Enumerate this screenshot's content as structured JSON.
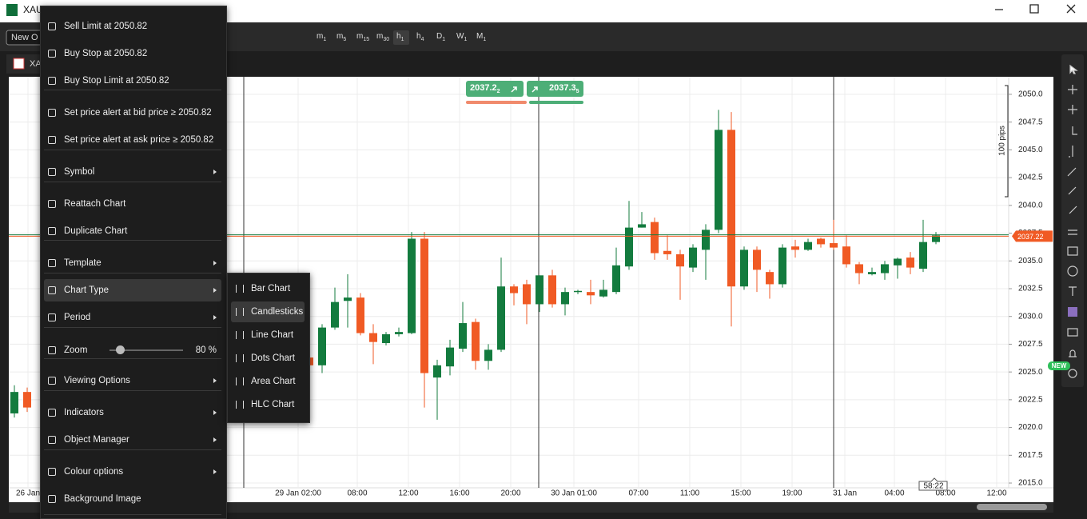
{
  "window": {
    "title": "XAU"
  },
  "toolbar": {
    "new_order": "New O",
    "periods": [
      {
        "main": "m",
        "sub": "1"
      },
      {
        "main": "m",
        "sub": "5"
      },
      {
        "main": "m",
        "sub": "15"
      },
      {
        "main": "m",
        "sub": "30"
      },
      {
        "main": "h",
        "sub": "1"
      },
      {
        "main": "h",
        "sub": "4"
      },
      {
        "main": "D",
        "sub": "1"
      },
      {
        "main": "W",
        "sub": "1"
      },
      {
        "main": "M",
        "sub": "1"
      }
    ],
    "active_period": 4
  },
  "tab": {
    "label": "XA"
  },
  "badge": "NEW",
  "chart_data": {
    "type": "candlestick",
    "ylim": [
      2014.57,
      2051.58
    ],
    "yticks": [
      {
        "value": 2050,
        "label": "2050.0"
      },
      {
        "value": 2047.5,
        "label": "2047.5"
      },
      {
        "value": 2045,
        "label": "2045.0"
      },
      {
        "value": 2042.5,
        "label": "2042.5"
      },
      {
        "value": 2040,
        "label": "2040.0"
      },
      {
        "value": 2037.5,
        "label": "2037.5"
      },
      {
        "value": 2035,
        "label": "2035.0"
      },
      {
        "value": 2032.5,
        "label": "2032.5"
      },
      {
        "value": 2030,
        "label": "2030.0"
      },
      {
        "value": 2027.5,
        "label": "2027.5"
      },
      {
        "value": 2025,
        "label": "2025.0"
      },
      {
        "value": 2022.5,
        "label": "2022.5"
      },
      {
        "value": 2020,
        "label": "2020.0"
      },
      {
        "value": 2017.5,
        "label": "2017.5"
      },
      {
        "value": 2015,
        "label": "2015.0"
      }
    ],
    "xticks": [
      "26 Jan",
      "29 Jan 02:00",
      "08:00",
      "12:00",
      "16:00",
      "20:00",
      "30 Jan 01:00",
      "07:00",
      "11:00",
      "15:00",
      "19:00",
      "31 Jan",
      "04:00",
      "08:00",
      "12:00"
    ],
    "grid": true,
    "up_color": "#137b3e",
    "down_color": "#f05a24",
    "candles": {
      "open": [
        2021.27,
        2023.2,
        2026.3,
        2025.6,
        2029.0,
        2031.4,
        2031.7,
        2028.5,
        2027.6,
        2028.4,
        2028.5,
        2037.0,
        2024.5,
        2025.5,
        2027.1,
        2029.5,
        2026.0,
        2027.0,
        2032.7,
        2032.9,
        2031.1,
        2033.7,
        2031.1,
        2032.2,
        2032.2,
        2031.8,
        2032.2,
        2034.5,
        2038.0,
        2038.5,
        2035.9,
        2035.6,
        2034.4,
        2036.0,
        2037.8,
        2046.8,
        2032.7,
        2036.0,
        2034.0,
        2032.9,
        2036.3,
        2036.0,
        2037.0,
        2036.6,
        2036.3,
        2034.7,
        2033.8,
        2033.9,
        2034.6,
        2035.3,
        2034.3,
        2036.7
      ],
      "high": [
        2023.8,
        2023.6,
        2026.5,
        2029.3,
        2032.6,
        2033.8,
        2032.1,
        2029.3,
        2028.6,
        2029.0,
        2037.6,
        2037.6,
        2026.1,
        2027.9,
        2031.3,
        2029.8,
        2027.5,
        2035.3,
        2032.9,
        2033.3,
        2033.7,
        2034.2,
        2032.6,
        2032.4,
        2033.3,
        2033.3,
        2036.2,
        2040.4,
        2039.4,
        2038.9,
        2037.3,
        2036.0,
        2036.5,
        2038.3,
        2048.6,
        2048.4,
        2036.3,
        2036.3,
        2034.2,
        2036.5,
        2036.9,
        2037.0,
        2037.1,
        2038.7,
        2037.3,
        2034.9,
        2034.4,
        2035.0,
        2035.3,
        2035.8,
        2038.7,
        2037.6
      ],
      "low": [
        2020.9,
        2021.4,
        2025.4,
        2024.9,
        2028.8,
        2029.0,
        2028.3,
        2025.7,
        2027.4,
        2028.2,
        2028.4,
        2021.8,
        2020.7,
        2024.7,
        2026.8,
        2025.2,
        2025.2,
        2026.8,
        2031.0,
        2029.3,
        2030.4,
        2030.8,
        2030.1,
        2032.0,
        2031.1,
        2031.7,
        2032.0,
        2034.2,
        2038.0,
        2035.1,
        2035.1,
        2031.5,
        2034.0,
        2033.3,
        2037.5,
        2029.1,
        2032.4,
        2032.2,
        2031.6,
        2032.6,
        2035.3,
        2035.9,
        2036.2,
        2036.0,
        2034.4,
        2032.9,
        2033.7,
        2033.3,
        2033.4,
        2033.8,
        2034.0,
        2036.5
      ],
      "close": [
        2023.2,
        2021.8,
        2025.6,
        2029.0,
        2031.3,
        2031.7,
        2028.5,
        2027.7,
        2028.4,
        2028.6,
        2037.0,
        2024.9,
        2025.6,
        2027.2,
        2029.4,
        2026.0,
        2027.0,
        2032.7,
        2032.1,
        2031.1,
        2033.7,
        2031.1,
        2032.2,
        2032.3,
        2031.9,
        2032.4,
        2034.6,
        2038.0,
        2038.3,
        2035.7,
        2035.6,
        2034.5,
        2036.2,
        2037.8,
        2046.8,
        2032.7,
        2036.0,
        2034.2,
        2032.9,
        2036.2,
        2036.0,
        2036.7,
        2036.5,
        2036.2,
        2034.7,
        2033.9,
        2034.0,
        2034.7,
        2035.2,
        2034.4,
        2036.7,
        2037.3
      ]
    },
    "bid": 2037.22,
    "bid_color": "#f05a24",
    "ask": 2037.35,
    "ask_color": "#137b3e",
    "sell_button": {
      "main": "2037.2",
      "sub": "2"
    },
    "buy_button": {
      "main": "2037.3",
      "sub": "5"
    },
    "pips_label": "100 pips",
    "countdown": "58:22"
  },
  "context_menu": {
    "items": [
      "Sell Limit at 2050.82",
      "Buy Stop at 2050.82",
      "Buy Stop Limit at 2050.82",
      "Set price alert at bid price ≥ 2050.82",
      "Set price alert at ask price ≥ 2050.82",
      "Symbol",
      "Reattach Chart",
      "Duplicate Chart",
      "Template",
      "Chart Type",
      "Period",
      "Zoom",
      "Viewing Options",
      "Indicators",
      "Object Manager",
      "Colour options",
      "Background Image"
    ],
    "zoom_value": "80 %",
    "highlighted": 9
  },
  "submenu": {
    "items": [
      "Bar Chart",
      "Candlesticks",
      "Line Chart",
      "Dots Chart",
      "Area Chart",
      "HLC Chart"
    ],
    "selected": 1
  }
}
